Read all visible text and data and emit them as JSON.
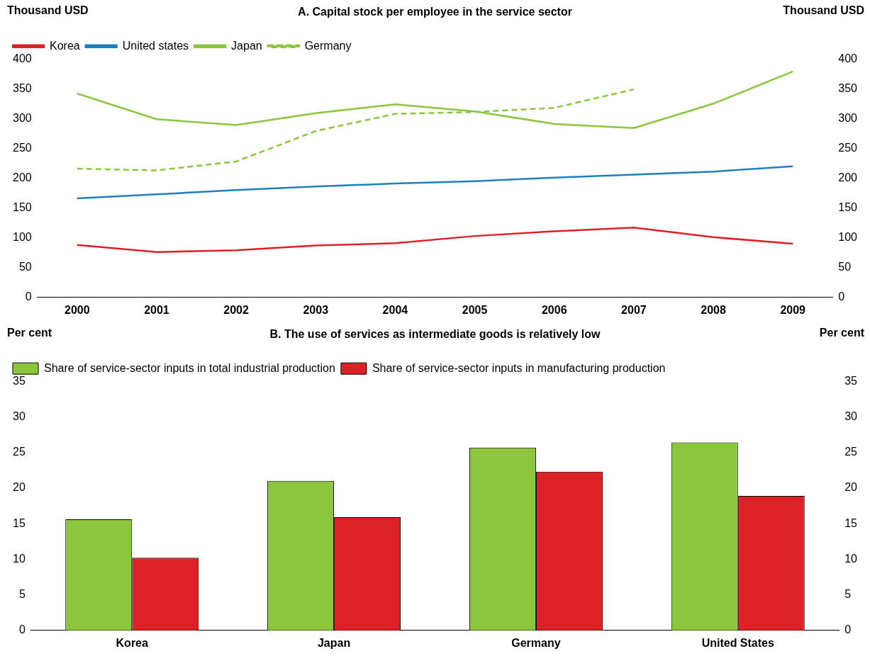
{
  "chart_data": [
    {
      "type": "line",
      "title": "A. Capital stock per employee in the service sector",
      "ylabel": "Thousand USD",
      "y2label": "Thousand USD",
      "categories": [
        "2000",
        "2001",
        "2002",
        "2003",
        "2004",
        "2005",
        "2006",
        "2007",
        "2008",
        "2009"
      ],
      "series": [
        {
          "name": "Korea",
          "color": "#dc2127",
          "values": [
            88,
            76,
            79,
            87,
            91,
            103,
            111,
            117,
            101,
            90
          ]
        },
        {
          "name": "United states",
          "color": "#1f7fc0",
          "values": [
            166,
            173,
            180,
            186,
            191,
            195,
            201,
            206,
            211,
            220
          ]
        },
        {
          "name": "Japan",
          "color": "#8cc63e",
          "values": [
            342,
            299,
            289,
            309,
            324,
            312,
            291,
            284,
            325,
            379
          ]
        },
        {
          "name": "Germany",
          "color": "#8cc63e",
          "line_style": "dashed",
          "values": [
            216,
            213,
            228,
            279,
            308,
            311,
            318,
            349,
            null,
            null
          ]
        }
      ],
      "ylim": [
        0,
        400
      ],
      "yticks": [
        0,
        50,
        100,
        150,
        200,
        250,
        300,
        350,
        400
      ],
      "y2lim": [
        0,
        400
      ],
      "y2ticks": [
        0,
        50,
        100,
        150,
        200,
        250,
        300,
        350,
        400
      ],
      "grid": false,
      "legend": "top left",
      "line_style": "solid",
      "marker": "none"
    },
    {
      "type": "bar",
      "title": "B. The use of services as intermediate goods is relatively low",
      "ylabel": "Per cent",
      "y2label": "Per cent",
      "categories": [
        "Korea",
        "Japan",
        "Germany",
        "United States"
      ],
      "series": [
        {
          "name": "Share of service-sector inputs in total industrial production",
          "color": "#8cc63e",
          "values": [
            15.6,
            21.0,
            25.7,
            26.4
          ]
        },
        {
          "name": "Share of service-sector inputs in manufacturing production",
          "color": "#dc2127",
          "values": [
            10.2,
            15.9,
            22.3,
            18.9
          ]
        }
      ],
      "ylim": [
        0,
        35
      ],
      "yticks": [
        0,
        5,
        10,
        15,
        20,
        25,
        30,
        35
      ],
      "y2lim": [
        0,
        35
      ],
      "y2ticks": [
        0,
        5,
        10,
        15,
        20,
        25,
        30,
        35
      ],
      "grid": false,
      "legend": "top left"
    }
  ]
}
